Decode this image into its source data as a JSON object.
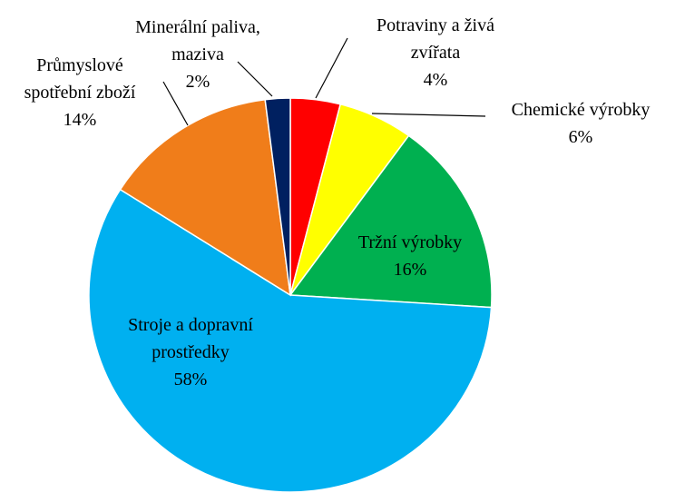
{
  "chart_data": {
    "type": "pie",
    "categories": [
      "Potraviny a živá zvířata",
      "Chemické výrobky",
      "Tržní výrobky",
      "Stroje a dopravní prostředky",
      "Průmyslové spotřební zboží",
      "Minerální paliva, maziva"
    ],
    "values": [
      4,
      6,
      16,
      58,
      14,
      2
    ],
    "value_labels": [
      "4%",
      "6%",
      "16%",
      "58%",
      "14%",
      "2%"
    ],
    "colors": [
      "#ff0000",
      "#ffff00",
      "#00b050",
      "#00b0f0",
      "#f07d1a",
      "#002060"
    ]
  }
}
